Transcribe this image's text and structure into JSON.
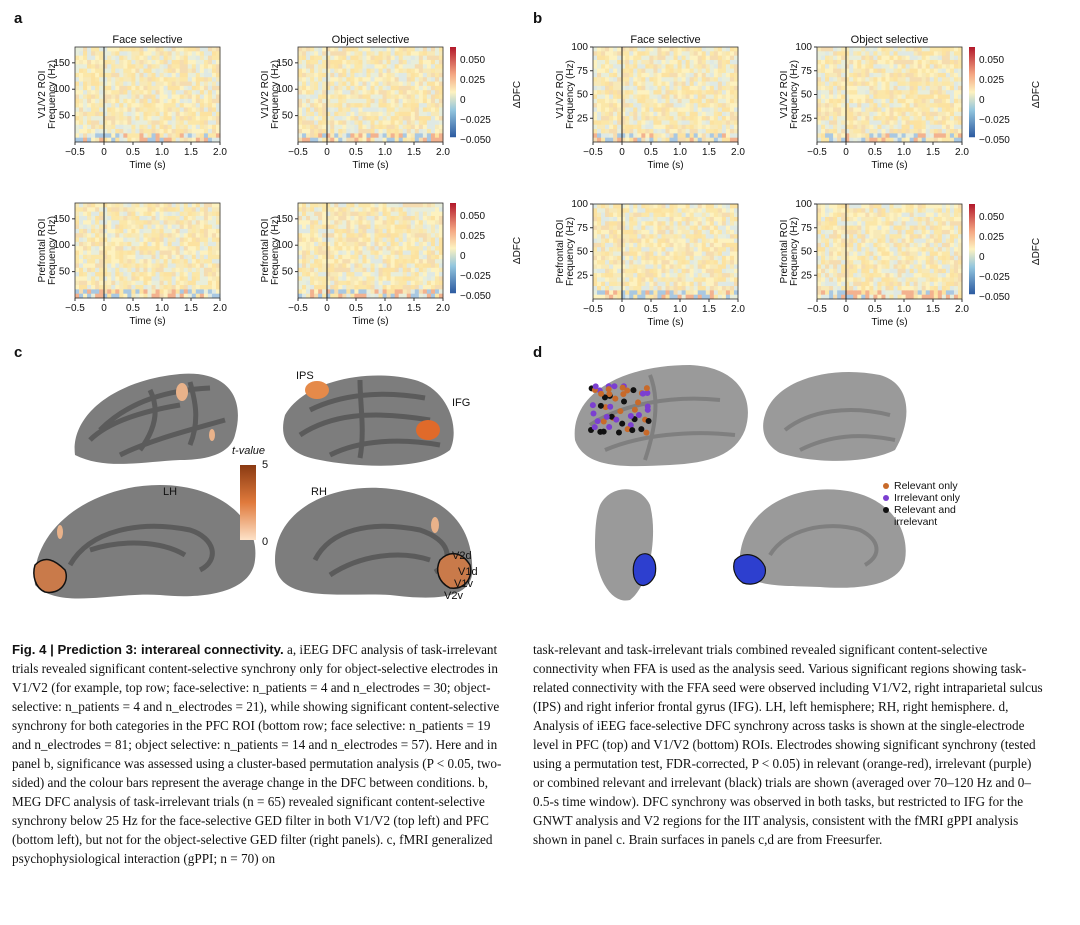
{
  "panel_labels": {
    "a": "a",
    "b": "b",
    "c": "c",
    "d": "d"
  },
  "panel_a": {
    "col_titles": [
      "Face selective",
      "Object selective"
    ],
    "row_ylabels": [
      [
        "V1/V2 ROI",
        "Frequency (Hz)"
      ],
      [
        "Prefrontal ROI",
        "Frequency (Hz)"
      ]
    ],
    "yticks": [
      "50",
      "100",
      "150"
    ],
    "xlabel": "Time (s)",
    "xticks": [
      "−0.5",
      "0",
      "0.5",
      "1.0",
      "1.5",
      "2.0"
    ]
  },
  "panel_b": {
    "col_titles": [
      "Face selective",
      "Object selective"
    ],
    "row_ylabels": [
      [
        "V1/V2 ROI",
        "Frequency (Hz)"
      ],
      [
        "Prefrontal ROI",
        "Frequency (Hz)"
      ]
    ],
    "yticks": [
      "25",
      "50",
      "75",
      "100"
    ],
    "xlabel": "Time (s)",
    "xticks": [
      "−0.5",
      "0",
      "0.5",
      "1.0",
      "1.5",
      "2.0"
    ]
  },
  "colorbar": {
    "label": "ΔDFC",
    "ticks": [
      "0.050",
      "0.025",
      "0",
      "−0.025",
      "−0.050"
    ],
    "colors": {
      "high": "#b2182b",
      "mid": "#fdf2c0",
      "low": "#2c5aa0"
    }
  },
  "panel_c": {
    "hemispheres": [
      "LH",
      "RH"
    ],
    "regions": [
      "IPS",
      "IFG"
    ],
    "roi_labels": [
      "V2d",
      "V1d",
      "V1v",
      "V2v"
    ],
    "tvalue": {
      "title": "t-value",
      "max": "5",
      "min": "0"
    }
  },
  "panel_d": {
    "legend": [
      {
        "label": "Relevant only",
        "color": "#c86a2a"
      },
      {
        "label": "Irrelevant only",
        "color": "#7b3fd0"
      },
      {
        "label": "Relevant and irrelevant",
        "color": "#111111"
      }
    ]
  },
  "caption": {
    "fig": "Fig. 4 | Prediction 3: interareal connectivity.",
    "left": [
      " a, iEEG DFC analysis of task-irrelevant trials revealed significant content-selective synchrony only for object-selective electrodes in V1/V2 (for example, top row; face-selective: ",
      "n_patients = 4 and n_electrodes = 30; object-selective: n_patients = 4 and n_electrodes = 21), while showing significant content-selective synchrony for both categories in the PFC ROI (bottom row; face selective: n_patients = 19 and n_electrodes = 81; object selective: n_patients = 14 and n_electrodes = 57). Here and in panel b, significance was assessed using a cluster-based permutation analysis (P < 0.05, two-sided) and the colour bars represent the average change in the DFC between conditions. b, MEG DFC analysis of task-irrelevant trials (n = 65) revealed significant content-selective synchrony below 25 Hz for the face-selective GED filter in both V1/V2 (top left) and PFC (bottom left), but not for the object-selective GED filter (right panels). c, fMRI generalized psychophysiological interaction (gPPI; n = 70) on"
    ],
    "right": "task-relevant and task-irrelevant trials combined revealed significant content-selective connectivity when FFA is used as the analysis seed. Various significant regions showing task-related connectivity with the FFA seed were observed including V1/V2, right intraparietal sulcus (IPS) and right inferior frontal gyrus (IFG). LH, left hemisphere; RH, right hemisphere. d, Analysis of iEEG face-selective DFC synchrony across tasks is shown at the single-electrode level in PFC (top) and V1/V2 (bottom) ROIs. Electrodes showing significant synchrony (tested using a permutation test, FDR-corrected, P < 0.05) in relevant (orange-red), irrelevant (purple) or combined relevant and irrelevant (black) trials are shown (averaged over 70–120 Hz and 0–0.5-s time window). DFC synchrony was observed in both tasks, but restricted to IFG for the GNWT analysis and V2 regions for the IIT analysis, consistent with the fMRI gPPI analysis shown in panel c. Brain surfaces in panels c,d are from Freesurfer."
  }
}
